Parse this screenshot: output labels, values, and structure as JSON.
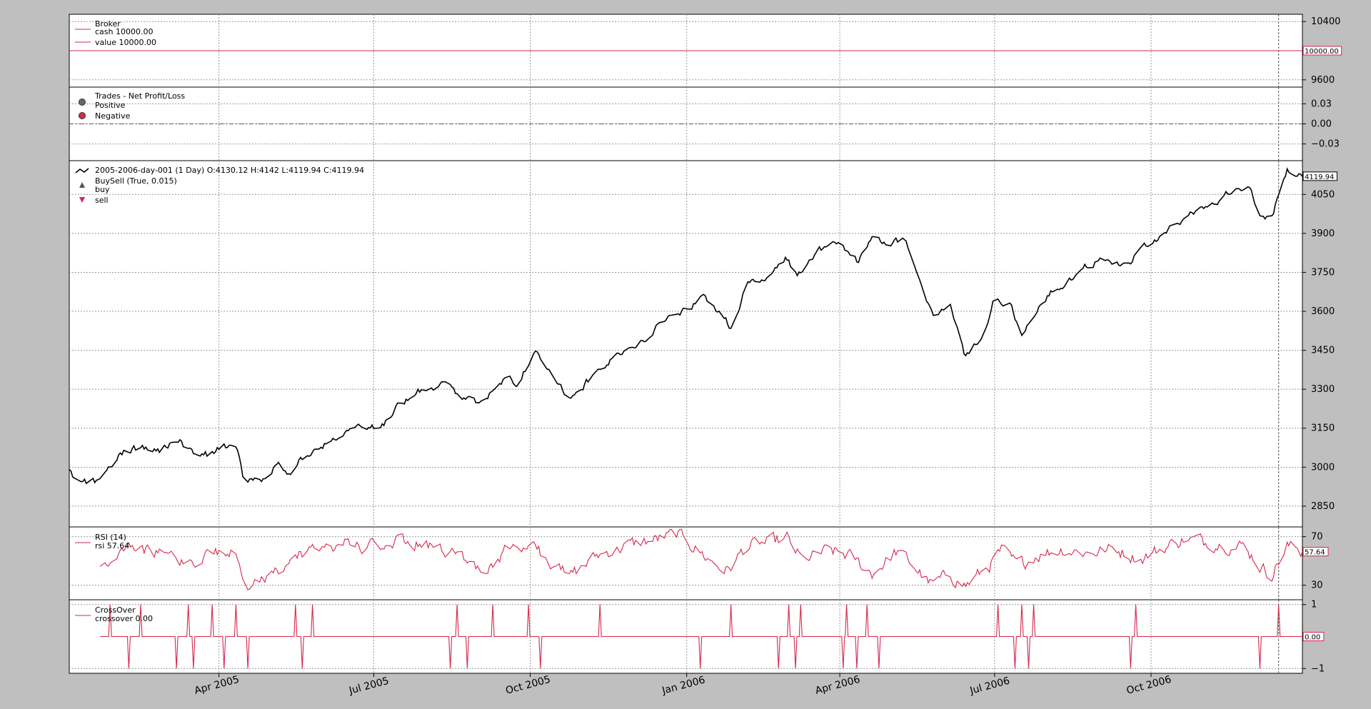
{
  "chart_data": [
    {
      "type": "line",
      "panel": "broker",
      "legend": {
        "title": "Broker",
        "entries": [
          "cash 10000.00",
          "value 10000.00"
        ]
      },
      "series": [
        {
          "name": "cash",
          "values": [
            10000,
            10000
          ],
          "color": "#d6274e"
        },
        {
          "name": "value",
          "values": [
            10000,
            10000
          ],
          "color": "#d6274e"
        }
      ],
      "ylim": [
        9500,
        10500
      ],
      "yticks": [
        9600,
        10400
      ],
      "ytick_labels": [
        "9600",
        "10400"
      ],
      "last_value_label": "10000.00"
    },
    {
      "type": "scatter",
      "panel": "trades",
      "legend": {
        "title": "Trades - Net Profit/Loss",
        "entries": [
          "Positive",
          "Negative"
        ]
      },
      "marker_colors": {
        "positive": "#666666",
        "negative": "#d6274e"
      },
      "points": [],
      "ylim": [
        -0.055,
        0.055
      ],
      "yticks": [
        -0.03,
        0.0,
        0.03
      ],
      "ytick_labels": [
        "−0.03",
        "0.00",
        "0.03"
      ]
    },
    {
      "type": "line",
      "panel": "price",
      "legend": {
        "entries": [
          "2005-2006-day-001 (1 Day) O:4130.12 H:4142 L:4119.94 C:4119.94",
          "BuySell (True, 0.015)",
          "buy",
          "sell"
        ]
      },
      "x_start": "2005-01-03",
      "x_end": "2006-12-29",
      "anchors": [
        [
          "2005-01-03",
          2980
        ],
        [
          "2005-01-10",
          2935
        ],
        [
          "2005-01-20",
          2950
        ],
        [
          "2005-02-01",
          3050
        ],
        [
          "2005-02-15",
          3080
        ],
        [
          "2005-02-25",
          3070
        ],
        [
          "2005-03-08",
          3110
        ],
        [
          "2005-03-15",
          3060
        ],
        [
          "2005-03-25",
          3050
        ],
        [
          "2005-04-05",
          3080
        ],
        [
          "2005-04-12",
          3070
        ],
        [
          "2005-04-15",
          2955
        ],
        [
          "2005-04-25",
          2940
        ],
        [
          "2005-05-05",
          3010
        ],
        [
          "2005-05-12",
          2980
        ],
        [
          "2005-05-25",
          3060
        ],
        [
          "2005-06-10",
          3120
        ],
        [
          "2005-06-25",
          3170
        ],
        [
          "2005-07-05",
          3140
        ],
        [
          "2005-07-15",
          3230
        ],
        [
          "2005-07-30",
          3300
        ],
        [
          "2005-08-10",
          3320
        ],
        [
          "2005-08-20",
          3280
        ],
        [
          "2005-08-30",
          3250
        ],
        [
          "2005-09-15",
          3330
        ],
        [
          "2005-09-25",
          3330
        ],
        [
          "2005-10-03",
          3450
        ],
        [
          "2005-10-15",
          3350
        ],
        [
          "2005-10-25",
          3260
        ],
        [
          "2005-11-05",
          3340
        ],
        [
          "2005-11-20",
          3420
        ],
        [
          "2005-12-05",
          3480
        ],
        [
          "2005-12-20",
          3570
        ],
        [
          "2006-01-01",
          3600
        ],
        [
          "2006-01-10",
          3660
        ],
        [
          "2006-01-20",
          3600
        ],
        [
          "2006-01-28",
          3530
        ],
        [
          "2006-02-05",
          3700
        ],
        [
          "2006-02-15",
          3720
        ],
        [
          "2006-02-28",
          3800
        ],
        [
          "2006-03-05",
          3760
        ],
        [
          "2006-03-10",
          3740
        ],
        [
          "2006-03-20",
          3840
        ],
        [
          "2006-04-01",
          3870
        ],
        [
          "2006-04-12",
          3790
        ],
        [
          "2006-04-20",
          3870
        ],
        [
          "2006-04-30",
          3860
        ],
        [
          "2006-05-10",
          3880
        ],
        [
          "2006-05-18",
          3700
        ],
        [
          "2006-05-25",
          3580
        ],
        [
          "2006-06-05",
          3620
        ],
        [
          "2006-06-14",
          3420
        ],
        [
          "2006-06-25",
          3520
        ],
        [
          "2006-07-01",
          3650
        ],
        [
          "2006-07-10",
          3630
        ],
        [
          "2006-07-17",
          3500
        ],
        [
          "2006-07-25",
          3600
        ],
        [
          "2006-08-05",
          3680
        ],
        [
          "2006-08-20",
          3760
        ],
        [
          "2006-09-01",
          3800
        ],
        [
          "2006-09-15",
          3780
        ],
        [
          "2006-09-25",
          3830
        ],
        [
          "2006-10-10",
          3900
        ],
        [
          "2006-10-25",
          3980
        ],
        [
          "2006-11-10",
          4020
        ],
        [
          "2006-11-20",
          4090
        ],
        [
          "2006-11-28",
          4080
        ],
        [
          "2006-12-05",
          3960
        ],
        [
          "2006-12-10",
          3950
        ],
        [
          "2006-12-20",
          4140
        ],
        [
          "2006-12-29",
          4119.94
        ]
      ],
      "ylim": [
        2770,
        4180
      ],
      "yticks": [
        2850,
        3000,
        3150,
        3300,
        3450,
        3600,
        3750,
        3900,
        4050
      ],
      "ytick_labels": [
        "2850",
        "3000",
        "3150",
        "3300",
        "3450",
        "3600",
        "3750",
        "3900",
        "4050"
      ],
      "last_value_label": "4119.94",
      "marker_colors": {
        "buy": "#555555",
        "sell": "#d6274e"
      }
    },
    {
      "type": "line",
      "panel": "rsi",
      "legend": {
        "title": "RSI (14)",
        "entries": [
          "rsi 57.64"
        ]
      },
      "x_start": "2005-01-21",
      "anchors": [
        [
          "2005-01-21",
          46
        ],
        [
          "2005-01-28",
          52
        ],
        [
          "2005-02-05",
          66
        ],
        [
          "2005-02-15",
          60
        ],
        [
          "2005-02-25",
          55
        ],
        [
          "2005-03-05",
          65
        ],
        [
          "2005-03-10",
          50
        ],
        [
          "2005-03-25",
          52
        ],
        [
          "2005-04-10",
          60
        ],
        [
          "2005-04-18",
          30
        ],
        [
          "2005-04-28",
          33
        ],
        [
          "2005-05-10",
          45
        ],
        [
          "2005-05-20",
          55
        ],
        [
          "2005-06-01",
          62
        ],
        [
          "2005-06-20",
          65
        ],
        [
          "2005-07-01",
          60
        ],
        [
          "2005-07-15",
          65
        ],
        [
          "2005-08-10",
          62
        ],
        [
          "2005-08-25",
          50
        ],
        [
          "2005-09-05",
          45
        ],
        [
          "2005-09-20",
          62
        ],
        [
          "2005-10-05",
          60
        ],
        [
          "2005-10-15",
          45
        ],
        [
          "2005-10-25",
          38
        ],
        [
          "2005-11-10",
          55
        ],
        [
          "2005-11-25",
          62
        ],
        [
          "2005-12-15",
          68
        ],
        [
          "2005-12-28",
          72
        ],
        [
          "2006-01-05",
          62
        ],
        [
          "2006-01-15",
          50
        ],
        [
          "2006-01-25",
          42
        ],
        [
          "2006-02-05",
          62
        ],
        [
          "2006-02-20",
          65
        ],
        [
          "2006-03-01",
          68
        ],
        [
          "2006-03-10",
          50
        ],
        [
          "2006-03-25",
          58
        ],
        [
          "2006-04-05",
          55
        ],
        [
          "2006-04-20",
          40
        ],
        [
          "2006-05-05",
          58
        ],
        [
          "2006-05-15",
          45
        ],
        [
          "2006-05-25",
          30
        ],
        [
          "2006-06-05",
          38
        ],
        [
          "2006-06-14",
          30
        ],
        [
          "2006-06-25",
          42
        ],
        [
          "2006-07-05",
          58
        ],
        [
          "2006-07-15",
          45
        ],
        [
          "2006-07-25",
          55
        ],
        [
          "2006-08-10",
          60
        ],
        [
          "2006-08-25",
          57
        ],
        [
          "2006-09-10",
          60
        ],
        [
          "2006-09-25",
          52
        ],
        [
          "2006-10-10",
          62
        ],
        [
          "2006-10-20",
          68
        ],
        [
          "2006-11-05",
          65
        ],
        [
          "2006-11-25",
          62
        ],
        [
          "2006-12-05",
          45
        ],
        [
          "2006-12-10",
          38
        ],
        [
          "2006-12-20",
          62
        ],
        [
          "2006-12-29",
          57.64
        ]
      ],
      "ylim": [
        18,
        78
      ],
      "yticks": [
        30,
        70
      ],
      "ytick_labels": [
        "30",
        "70"
      ],
      "last_value_label": "57.64"
    },
    {
      "type": "line",
      "panel": "crossover",
      "legend": {
        "title": "CrossOver",
        "entries": [
          "crossover 0.00"
        ]
      },
      "x_start": "2005-01-21",
      "events": [
        [
          "2005-01-27",
          1
        ],
        [
          "2005-02-07",
          -1
        ],
        [
          "2005-02-14",
          1
        ],
        [
          "2005-03-07",
          -1
        ],
        [
          "2005-03-14",
          1
        ],
        [
          "2005-03-17",
          -1
        ],
        [
          "2005-03-28",
          1
        ],
        [
          "2005-04-04",
          -1
        ],
        [
          "2005-04-11",
          1
        ],
        [
          "2005-04-18",
          -1
        ],
        [
          "2005-05-16",
          1
        ],
        [
          "2005-05-20",
          -1
        ],
        [
          "2005-05-26",
          1
        ],
        [
          "2005-08-15",
          -1
        ],
        [
          "2005-08-19",
          1
        ],
        [
          "2005-08-25",
          -1
        ],
        [
          "2005-09-09",
          1
        ],
        [
          "2005-09-30",
          1
        ],
        [
          "2005-10-07",
          -1
        ],
        [
          "2005-11-11",
          1
        ],
        [
          "2006-01-09",
          -1
        ],
        [
          "2006-01-27",
          1
        ],
        [
          "2006-02-24",
          -1
        ],
        [
          "2006-03-02",
          1
        ],
        [
          "2006-03-06",
          -1
        ],
        [
          "2006-03-09",
          1
        ],
        [
          "2006-04-03",
          -1
        ],
        [
          "2006-04-05",
          1
        ],
        [
          "2006-04-11",
          -1
        ],
        [
          "2006-04-17",
          1
        ],
        [
          "2006-04-24",
          -1
        ],
        [
          "2006-07-03",
          1
        ],
        [
          "2006-07-13",
          -1
        ],
        [
          "2006-07-17",
          1
        ],
        [
          "2006-07-21",
          -1
        ],
        [
          "2006-07-24",
          1
        ],
        [
          "2006-09-19",
          -1
        ],
        [
          "2006-09-22",
          1
        ],
        [
          "2006-12-04",
          -1
        ],
        [
          "2006-12-15",
          1
        ]
      ],
      "ylim": [
        -1.15,
        1.15
      ],
      "yticks": [
        -1,
        1
      ],
      "ytick_labels": [
        "−1",
        "1"
      ],
      "last_value_label": "0.00"
    }
  ],
  "x_axis": {
    "ticks": [
      "2005-04-01",
      "2005-07-01",
      "2005-10-01",
      "2006-01-01",
      "2006-04-01",
      "2006-07-01",
      "2006-10-01"
    ],
    "tick_labels": [
      "Apr 2005",
      "Jul 2005",
      "Oct 2005",
      "Jan 2006",
      "Apr 2006",
      "Jul 2006",
      "Oct 2006"
    ],
    "range": [
      "2005-01-03",
      "2006-12-29"
    ],
    "cursor_date": "2006-12-15"
  },
  "colors": {
    "line": "#d6274e",
    "price": "#000000",
    "background": "#bfbfbf",
    "panel": "#ffffff"
  }
}
